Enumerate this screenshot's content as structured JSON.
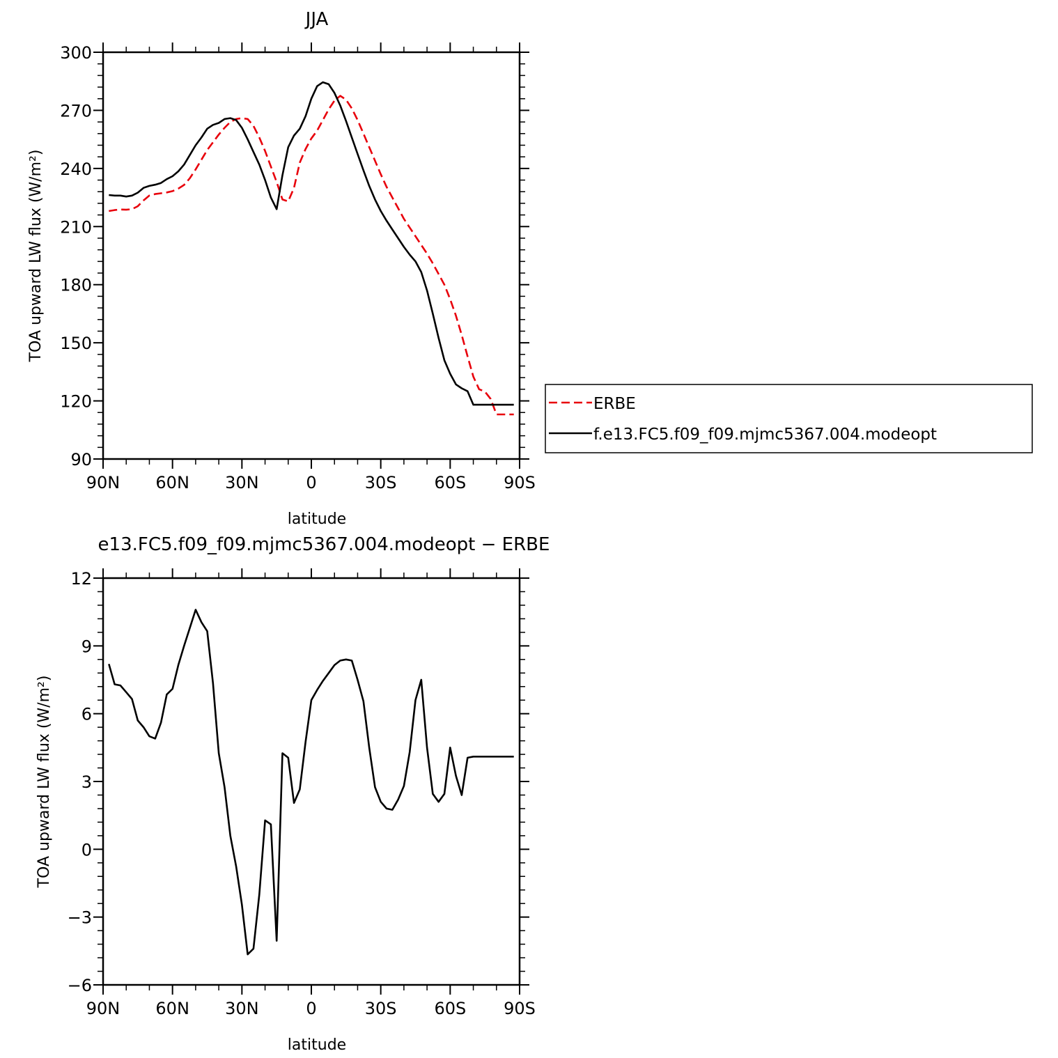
{
  "chart_data": [
    {
      "type": "line",
      "title": "JJA",
      "xlabel": "latitude",
      "ylabel": "TOA upward LW flux (W/m²)",
      "xlim": [
        -90,
        90
      ],
      "ylim": [
        90,
        300
      ],
      "x_tick_values": [
        -90,
        -60,
        -30,
        0,
        30,
        60,
        90
      ],
      "x_tick_labels": [
        "90N",
        "60N",
        "30N",
        "0",
        "30S",
        "60S",
        "90S"
      ],
      "y_ticks": [
        90,
        120,
        150,
        180,
        210,
        240,
        270,
        300
      ],
      "grid": false,
      "legend": {
        "position": "right",
        "entries": [
          "ERBE",
          "f.e13.FC5.f09_f09.mjmc5367.004.modeopt"
        ]
      },
      "series": [
        {
          "name": "ERBE",
          "color": "#e8000b",
          "dash": "dashed",
          "x": [
            -87.5,
            -85,
            -82.5,
            -80,
            -77.5,
            -75,
            -72.5,
            -70,
            -67.5,
            -65,
            -62.5,
            -60,
            -57.5,
            -55,
            -52.5,
            -50,
            -47.5,
            -45,
            -42.5,
            -40,
            -37.5,
            -35,
            -32.5,
            -30,
            -27.5,
            -25,
            -22.5,
            -20,
            -17.5,
            -15,
            -12.5,
            -10,
            -7.5,
            -5,
            -2.5,
            0,
            2.5,
            5,
            7.5,
            10,
            12.5,
            15,
            17.5,
            20,
            22.5,
            25,
            27.5,
            30,
            32.5,
            35,
            37.5,
            40,
            42.5,
            45,
            47.5,
            50,
            52.5,
            55,
            57.5,
            60,
            62.5,
            65,
            67.5,
            70,
            72.5,
            75,
            77.5,
            80,
            82.5,
            85,
            87.5
          ],
          "values": [
            218,
            218.5,
            218.8,
            218.7,
            219,
            220.5,
            223.5,
            226,
            226.8,
            227.2,
            227.6,
            228.3,
            229.6,
            231.5,
            235,
            239.5,
            244.5,
            249.5,
            253.5,
            257.5,
            261,
            264,
            265.5,
            266,
            265.5,
            262,
            256,
            249,
            241,
            233,
            224,
            223,
            230,
            243,
            250,
            255.5,
            259.5,
            265,
            270.5,
            275,
            277.5,
            275.5,
            271,
            265,
            258,
            251,
            244,
            237,
            230.5,
            225,
            219.5,
            214,
            209.5,
            205,
            200.5,
            196,
            191,
            185.5,
            180,
            172.5,
            164,
            154,
            143,
            132.5,
            126,
            124.8,
            121,
            113,
            113,
            113,
            113
          ]
        },
        {
          "name": "f.e13.FC5.f09_f09.mjmc5367.004.modeopt",
          "color": "#000000",
          "dash": "solid",
          "x": [
            -87.5,
            -85,
            -82.5,
            -80,
            -77.5,
            -75,
            -72.5,
            -70,
            -67.5,
            -65,
            -62.5,
            -60,
            -57.5,
            -55,
            -52.5,
            -50,
            -47.5,
            -45,
            -42.5,
            -40,
            -37.5,
            -35,
            -32.5,
            -30,
            -27.5,
            -25,
            -22.5,
            -20,
            -17.5,
            -15,
            -12.5,
            -10,
            -7.5,
            -5,
            -2.5,
            0,
            2.5,
            5,
            7.5,
            10,
            12.5,
            15,
            17.5,
            20,
            22.5,
            25,
            27.5,
            30,
            32.5,
            35,
            37.5,
            40,
            42.5,
            45,
            47.5,
            50,
            52.5,
            55,
            57.5,
            60,
            62.5,
            65,
            67.5,
            70,
            72.5,
            75,
            77.5,
            80,
            82.5,
            85,
            87.5
          ],
          "values": [
            226.3,
            226,
            226,
            225.5,
            226,
            227.5,
            230,
            231,
            231.6,
            232.5,
            234.5,
            236,
            238.5,
            242,
            247,
            252,
            256,
            260.5,
            262.5,
            263.5,
            265.5,
            266,
            265,
            261,
            255,
            248.5,
            242,
            234,
            225,
            219,
            236.5,
            251,
            257,
            260.5,
            267,
            276,
            282.5,
            284.5,
            283.5,
            279,
            272.5,
            264.5,
            256,
            247.5,
            239,
            231,
            224,
            218,
            213,
            208.5,
            204,
            199.5,
            195.5,
            192,
            186.5,
            177,
            165,
            152.5,
            141,
            134,
            128.5,
            126.5,
            125,
            118,
            118,
            118,
            118,
            118,
            118,
            118,
            118
          ]
        }
      ]
    },
    {
      "type": "line",
      "title": "e13.FC5.f09_f09.mjmc5367.004.modeopt − ERBE",
      "xlabel": "latitude",
      "ylabel": "TOA upward LW flux (W/m²)",
      "xlim": [
        -90,
        90
      ],
      "ylim": [
        -6,
        12
      ],
      "x_tick_values": [
        -90,
        -60,
        -30,
        0,
        30,
        60,
        90
      ],
      "x_tick_labels": [
        "90N",
        "60N",
        "30N",
        "0",
        "30S",
        "60S",
        "90S"
      ],
      "y_ticks": [
        -6,
        -3,
        0,
        3,
        6,
        9,
        12
      ],
      "y_tick_labels": [
        "−6",
        "−3",
        "0",
        "3",
        "6",
        "9",
        "12"
      ],
      "grid": false,
      "series": [
        {
          "color": "#000000",
          "dash": "solid",
          "x": [
            -87.5,
            -85,
            -82.5,
            -80,
            -77.5,
            -75,
            -72.5,
            -70,
            -67.5,
            -65,
            -62.5,
            -60,
            -57.5,
            -55,
            -52.5,
            -50,
            -47.5,
            -45,
            -42.5,
            -40,
            -37.5,
            -35,
            -32.5,
            -30,
            -27.5,
            -25,
            -22.5,
            -20,
            -17.5,
            -15,
            -12.5,
            -10,
            -7.5,
            -5,
            -2.5,
            0,
            2.5,
            5,
            7.5,
            10,
            12.5,
            15,
            17.5,
            20,
            22.5,
            25,
            27.5,
            30,
            32.5,
            35,
            37.5,
            40,
            42.5,
            45,
            47.5,
            50,
            52.5,
            55,
            57.5,
            60,
            62.5,
            65,
            67.5,
            70,
            72.5,
            75,
            77.5,
            80,
            82.5,
            85,
            87.5
          ],
          "values": [
            8.2,
            7.3,
            7.25,
            6.95,
            6.65,
            5.7,
            5.4,
            5.0,
            4.9,
            5.6,
            6.85,
            7.1,
            8.15,
            9.0,
            9.8,
            10.6,
            10.05,
            9.65,
            7.35,
            4.25,
            2.75,
            0.6,
            -0.75,
            -2.45,
            -4.65,
            -4.4,
            -2.0,
            1.28,
            1.1,
            -4.05,
            4.25,
            4.05,
            2.05,
            2.65,
            4.75,
            6.6,
            7.05,
            7.45,
            7.8,
            8.15,
            8.35,
            8.4,
            8.35,
            7.5,
            6.55,
            4.5,
            2.75,
            2.1,
            1.8,
            1.75,
            2.2,
            2.8,
            4.3,
            6.6,
            7.5,
            4.5,
            2.45,
            2.1,
            2.45,
            4.5,
            3.25,
            2.4,
            4.05,
            4.1,
            4.1,
            4.1,
            4.1,
            4.1,
            4.1,
            4.1,
            4.1
          ]
        }
      ]
    }
  ]
}
